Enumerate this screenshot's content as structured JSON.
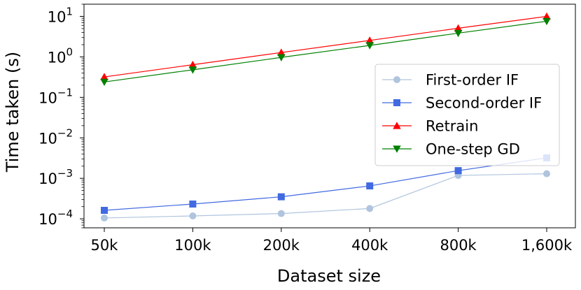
{
  "chart_data": {
    "type": "line",
    "xlabel": "Dataset size",
    "ylabel": "Time taken (s)",
    "categories": [
      "50k",
      "100k",
      "200k",
      "400k",
      "800k",
      "1,600k"
    ],
    "yscale": "log",
    "ylim": [
      6e-05,
      20
    ],
    "yticks": [
      {
        "base": "10",
        "exp": "−4"
      },
      {
        "base": "10",
        "exp": "−3"
      },
      {
        "base": "10",
        "exp": "−2"
      },
      {
        "base": "10",
        "exp": "−1"
      },
      {
        "base": "10",
        "exp": "0"
      },
      {
        "base": "10",
        "exp": "1"
      }
    ],
    "legend_position": "center-right",
    "grid": false,
    "series": [
      {
        "name": "First-order IF",
        "color": "#b0c4de",
        "marker": "circle",
        "values": [
          0.000105,
          0.000118,
          0.000135,
          0.00018,
          0.00118,
          0.0013
        ]
      },
      {
        "name": "Second-order IF",
        "color": "#4169e1",
        "marker": "square",
        "values": [
          0.000162,
          0.000232,
          0.00035,
          0.00065,
          0.00155,
          0.0032
        ]
      },
      {
        "name": "Retrain",
        "color": "#ff0000",
        "marker": "triangle-up",
        "values": [
          0.32,
          0.64,
          1.28,
          2.55,
          5.1,
          10.0
        ]
      },
      {
        "name": "One-step GD",
        "color": "#008000",
        "marker": "triangle-down",
        "values": [
          0.24,
          0.48,
          0.97,
          1.92,
          3.85,
          7.6
        ]
      }
    ]
  }
}
